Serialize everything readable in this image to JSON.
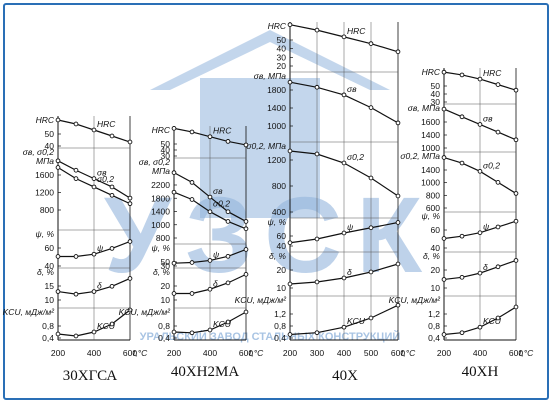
{
  "watermark": {
    "big_text": "УЗСК",
    "sub_text": "УРАЛЬСКИЙ ЗАВОД СТАЛЬНЫХ КОНСТРУКЦИЙ",
    "color": "#3a78c0"
  },
  "colors": {
    "frame": "#2a6fb6",
    "ink": "#111111",
    "grid": "#555555"
  },
  "chart_data": [
    {
      "type": "line",
      "title": "30ХГСА",
      "xlabel": "t,°C",
      "x_ticks": [
        "200",
        "400",
        "600"
      ],
      "xlim": [
        200,
        600
      ],
      "groups": [
        {
          "labels": [
            "HRC"
          ],
          "ticks": [
            "50",
            "40"
          ],
          "range": [
            37,
            53
          ],
          "series": [
            {
              "name": "HRC",
              "x": [
                200,
                300,
                400,
                500,
                600
              ],
              "y": [
                51,
                49,
                46,
                43,
                40
              ]
            }
          ]
        },
        {
          "labels": [
            "σв, σ0,2",
            "МПа"
          ],
          "ticks": [
            "1600",
            "1200",
            "800"
          ],
          "range": [
            700,
            1850
          ],
          "series": [
            {
              "name": "σв",
              "x": [
                200,
                300,
                400,
                500,
                600
              ],
              "y": [
                1620,
                1450,
                1300,
                1150,
                950
              ]
            },
            {
              "name": "σ0,2",
              "x": [
                200,
                300,
                400,
                500,
                600
              ],
              "y": [
                1500,
                1300,
                1150,
                1000,
                850
              ]
            }
          ]
        },
        {
          "labels": [
            "ψ, %"
          ],
          "ticks": [
            "60",
            "40"
          ],
          "range": [
            35,
            68
          ],
          "series": [
            {
              "name": "ψ",
              "x": [
                200,
                300,
                400,
                500,
                600
              ],
              "y": [
                45,
                45,
                47,
                52,
                58
              ]
            }
          ]
        },
        {
          "labels": [
            "δ, %"
          ],
          "ticks": [
            "15",
            "10"
          ],
          "range": [
            7,
            20
          ],
          "series": [
            {
              "name": "δ",
              "x": [
                200,
                300,
                400,
                500,
                600
              ],
              "y": [
                11,
                10,
                11,
                13,
                16
              ]
            }
          ]
        },
        {
          "labels": [
            "KCU, мДж/м²"
          ],
          "ticks": [
            "0,8",
            "0,4"
          ],
          "range": [
            0.2,
            1.0
          ],
          "series": [
            {
              "name": "KCU",
              "x": [
                200,
                300,
                400,
                500,
                600
              ],
              "y": [
                0.35,
                0.3,
                0.4,
                0.6,
                0.95
              ]
            }
          ]
        }
      ]
    },
    {
      "type": "line",
      "title": "40ХН2МА",
      "xlabel": "t,°C",
      "x_ticks": [
        "200",
        "400",
        "600"
      ],
      "xlim": [
        200,
        600
      ],
      "groups": [
        {
          "labels": [
            "HRC"
          ],
          "ticks": [
            "50",
            "40",
            "30"
          ],
          "range": [
            26,
            53
          ],
          "series": [
            {
              "name": "HRC",
              "x": [
                200,
                300,
                400,
                500,
                600
              ],
              "y": [
                51,
                48,
                44,
                40,
                37
              ]
            }
          ]
        },
        {
          "labels": [
            "σв, σ0,2",
            "МПа"
          ],
          "ticks": [
            "2200",
            "1800",
            "1400",
            "1000",
            "800"
          ],
          "range": [
            720,
            2400
          ],
          "series": [
            {
              "name": "σв",
              "x": [
                200,
                300,
                400,
                500,
                600
              ],
              "y": [
                2100,
                1900,
                1600,
                1300,
                1100
              ]
            },
            {
              "name": "σ0,2",
              "x": [
                200,
                300,
                400,
                500,
                600
              ],
              "y": [
                1700,
                1550,
                1300,
                1100,
                950
              ]
            }
          ]
        },
        {
          "labels": [
            "ψ, %"
          ],
          "ticks": [
            "50",
            "30"
          ],
          "range": [
            25,
            60
          ],
          "series": [
            {
              "name": "ψ",
              "x": [
                200,
                300,
                400,
                500,
                600
              ],
              "y": [
                32,
                33,
                36,
                42,
                52
              ]
            }
          ]
        },
        {
          "labels": [
            "δ, %"
          ],
          "ticks": [
            "20",
            "10"
          ],
          "range": [
            6,
            22
          ],
          "series": [
            {
              "name": "δ",
              "x": [
                200,
                300,
                400,
                500,
                600
              ],
              "y": [
                10,
                10,
                12,
                15,
                19
              ]
            }
          ]
        },
        {
          "labels": [
            "KCU, мДж/м²"
          ],
          "ticks": [
            "0,8",
            "0,4"
          ],
          "range": [
            0.2,
            1.0
          ],
          "series": [
            {
              "name": "KCU",
              "x": [
                200,
                300,
                400,
                500,
                600
              ],
              "y": [
                0.4,
                0.38,
                0.45,
                0.65,
                0.9
              ]
            }
          ]
        }
      ]
    },
    {
      "type": "line",
      "title": "40Х",
      "xlabel": "t,°C",
      "x_ticks": [
        "200",
        "300",
        "400",
        "500",
        "600"
      ],
      "xlim": [
        200,
        600
      ],
      "groups": [
        {
          "labels": [
            "HRC"
          ],
          "ticks": [
            "50",
            "40",
            "30",
            "20"
          ],
          "range": [
            18,
            52
          ],
          "series": [
            {
              "name": "HRC",
              "x": [
                200,
                300,
                400,
                500,
                600
              ],
              "y": [
                50,
                46,
                41,
                36,
                30
              ]
            }
          ]
        },
        {
          "labels": [
            "σв, МПа"
          ],
          "ticks": [
            "1800",
            "1400",
            "1000"
          ],
          "range": [
            850,
            1950
          ],
          "series": [
            {
              "name": "σв",
              "x": [
                200,
                300,
                400,
                500,
                600
              ],
              "y": [
                1750,
                1650,
                1500,
                1250,
                950
              ]
            }
          ]
        },
        {
          "labels": [
            "σ0,2, МПа"
          ],
          "ticks": [
            "1200",
            "800",
            "400"
          ],
          "range": [
            300,
            1500
          ],
          "series": [
            {
              "name": "σ0,2",
              "x": [
                200,
                300,
                400,
                500,
                600
              ],
              "y": [
                1350,
                1300,
                1150,
                900,
                600
              ]
            }
          ]
        },
        {
          "labels": [
            "ψ, %"
          ],
          "ticks": [
            "60",
            "40"
          ],
          "range": [
            28,
            68
          ],
          "series": [
            {
              "name": "ψ",
              "x": [
                200,
                300,
                400,
                500,
                600
              ],
              "y": [
                35,
                40,
                48,
                55,
                62
              ]
            }
          ]
        },
        {
          "labels": [
            "δ, %"
          ],
          "ticks": [
            "20",
            "10"
          ],
          "range": [
            5,
            24
          ],
          "series": [
            {
              "name": "δ",
              "x": [
                200,
                300,
                400,
                500,
                600
              ],
              "y": [
                8,
                9,
                11,
                14,
                18
              ]
            }
          ]
        },
        {
          "labels": [
            "KCU, мДж/м²"
          ],
          "ticks": [
            "1,2",
            "0,8",
            "0,4"
          ],
          "range": [
            0.2,
            1.4
          ],
          "series": [
            {
              "name": "KCU",
              "x": [
                200,
                300,
                400,
                500,
                600
              ],
              "y": [
                0.35,
                0.4,
                0.55,
                0.8,
                1.15
              ]
            }
          ]
        }
      ]
    },
    {
      "type": "line",
      "title": "40ХН",
      "xlabel": "t,°C",
      "x_ticks": [
        "200",
        "400",
        "600"
      ],
      "xlim": [
        200,
        600
      ],
      "groups": [
        {
          "labels": [
            "HRC"
          ],
          "ticks": [
            "50",
            "40",
            "30"
          ],
          "range": [
            27,
            53
          ],
          "series": [
            {
              "name": "HRC",
              "x": [
                200,
                300,
                400,
                500,
                600
              ],
              "y": [
                50,
                48,
                45,
                41,
                37
              ]
            }
          ]
        },
        {
          "labels": [
            "σв, МПа"
          ],
          "ticks": [
            "1600",
            "1400",
            "1000"
          ],
          "range": [
            900,
            1800
          ],
          "series": [
            {
              "name": "σв",
              "x": [
                200,
                300,
                400,
                500,
                600
              ],
              "y": [
                1700,
                1550,
                1400,
                1250,
                1100
              ]
            }
          ]
        },
        {
          "labels": [
            "σ0,2, МПа"
          ],
          "ticks": [
            "1400",
            "1000",
            "800",
            "600"
          ],
          "range": [
            500,
            1550
          ],
          "series": [
            {
              "name": "σ0,2",
              "x": [
                200,
                300,
                400,
                500,
                600
              ],
              "y": [
                1450,
                1350,
                1200,
                1000,
                800
              ]
            }
          ]
        },
        {
          "labels": [
            "ψ, %"
          ],
          "ticks": [
            "60",
            "40"
          ],
          "range": [
            35,
            68
          ],
          "series": [
            {
              "name": "ψ",
              "x": [
                200,
                300,
                400,
                500,
                600
              ],
              "y": [
                45,
                47,
                50,
                55,
                60
              ]
            }
          ]
        },
        {
          "labels": [
            "δ, %"
          ],
          "ticks": [
            "20",
            "10"
          ],
          "range": [
            6,
            24
          ],
          "series": [
            {
              "name": "δ",
              "x": [
                200,
                300,
                400,
                500,
                600
              ],
              "y": [
                11,
                12,
                14,
                17,
                20
              ]
            }
          ]
        },
        {
          "labels": [
            "KCU, мДж/м²"
          ],
          "ticks": [
            "1,2",
            "0,8",
            "0,4"
          ],
          "range": [
            0.2,
            1.4
          ],
          "series": [
            {
              "name": "KCU",
              "x": [
                200,
                300,
                400,
                500,
                600
              ],
              "y": [
                0.35,
                0.4,
                0.55,
                0.8,
                1.1
              ]
            }
          ]
        }
      ]
    }
  ]
}
